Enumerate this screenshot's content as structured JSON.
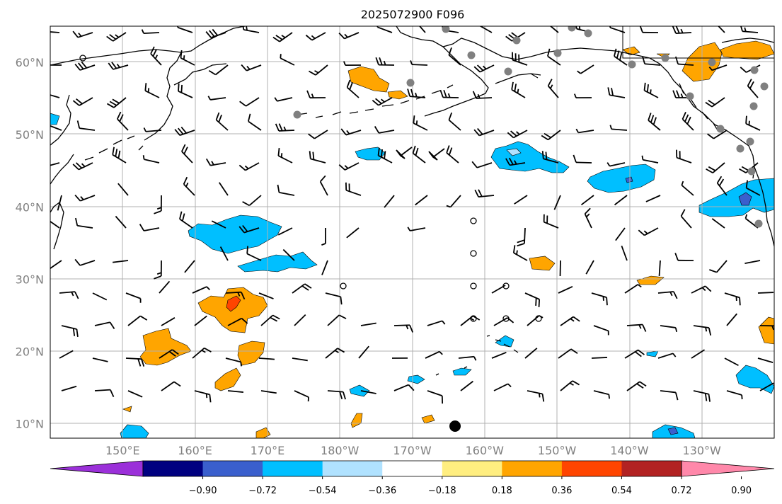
{
  "title": "2025072900 F096",
  "lat_labels": [
    {
      "lat": 60,
      "label": "60°N"
    },
    {
      "lat": 50,
      "label": "50°N"
    },
    {
      "lat": 40,
      "label": "40°N"
    },
    {
      "lat": 30,
      "label": "30°N"
    },
    {
      "lat": 20,
      "label": "20°N"
    },
    {
      "lat": 10,
      "label": "10°N"
    }
  ],
  "lon_labels": [
    {
      "lon": 150,
      "label": "150°E"
    },
    {
      "lon": 160,
      "label": "160°E"
    },
    {
      "lon": 170,
      "label": "170°E"
    },
    {
      "lon": 180,
      "label": "180°W"
    },
    {
      "lon": 190,
      "label": "170°W"
    },
    {
      "lon": 200,
      "label": "160°W"
    },
    {
      "lon": 210,
      "label": "150°W"
    },
    {
      "lon": 220,
      "label": "140°W"
    },
    {
      "lon": 230,
      "label": "130°W"
    }
  ],
  "map_extent": {
    "lon_min": 140,
    "lon_max": 240,
    "lat_min": 8,
    "lat_max": 65
  },
  "colorbar": {
    "colors": [
      "#9b30d9",
      "#000080",
      "#3a5fcd",
      "#00bfff",
      "#b0e2ff",
      "#ffffff",
      "#ffee80",
      "#ffa500",
      "#ff4500",
      "#b22222",
      "#ff88aa"
    ],
    "tick_labels": [
      "−0.90",
      "−0.72",
      "−0.54",
      "−0.36",
      "−0.18",
      "0.18",
      "0.36",
      "0.54",
      "0.72",
      "0.90"
    ]
  },
  "colors": {
    "coast": "#000000",
    "grid": "#b0b0b0",
    "gray_marker": "#808080"
  }
}
